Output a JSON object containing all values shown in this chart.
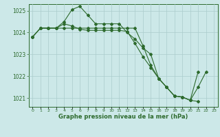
{
  "xlabel": "Graphe pression niveau de la mer (hPa)",
  "background_color": "#cce8e8",
  "grid_color": "#aacccc",
  "line_color": "#2d6a2d",
  "ylim": [
    1020.6,
    1025.3
  ],
  "xlim": [
    -0.5,
    23.5
  ],
  "yticks": [
    1021,
    1022,
    1023,
    1024,
    1025
  ],
  "xtick_labels": [
    "0",
    "1",
    "2",
    "3",
    "4",
    "5",
    "6",
    "7",
    "8",
    "9",
    "10",
    "11",
    "12",
    "13",
    "14",
    "15",
    "16",
    "17",
    "18",
    "19",
    "20",
    "21",
    "22",
    "23"
  ],
  "series1": [
    1023.8,
    1024.2,
    1024.2,
    1024.2,
    1024.5,
    1025.05,
    1025.2,
    1024.8,
    1024.4,
    1024.4,
    1024.4,
    1024.4,
    1024.0,
    1023.7,
    1023.3,
    1023.0,
    1021.9,
    1021.5,
    1021.1,
    1021.05,
    1020.9,
    1021.5,
    1022.2,
    null
  ],
  "series2": [
    1023.8,
    1024.2,
    1024.2,
    1024.2,
    1024.2,
    1024.2,
    1024.2,
    1024.2,
    1024.2,
    1024.2,
    1024.2,
    1024.2,
    1024.2,
    1024.2,
    1023.4,
    1022.5,
    1021.9,
    1021.5,
    1021.1,
    1021.05,
    1020.9,
    1020.85,
    null,
    null
  ],
  "series3": [
    1023.8,
    1024.2,
    1024.2,
    1024.2,
    1024.4,
    1024.3,
    1024.15,
    1024.1,
    1024.1,
    1024.1,
    1024.1,
    1024.1,
    1024.05,
    1023.5,
    1022.9,
    1022.4,
    1021.9,
    1021.5,
    1021.1,
    1021.05,
    1020.9,
    1022.2,
    null,
    null
  ]
}
